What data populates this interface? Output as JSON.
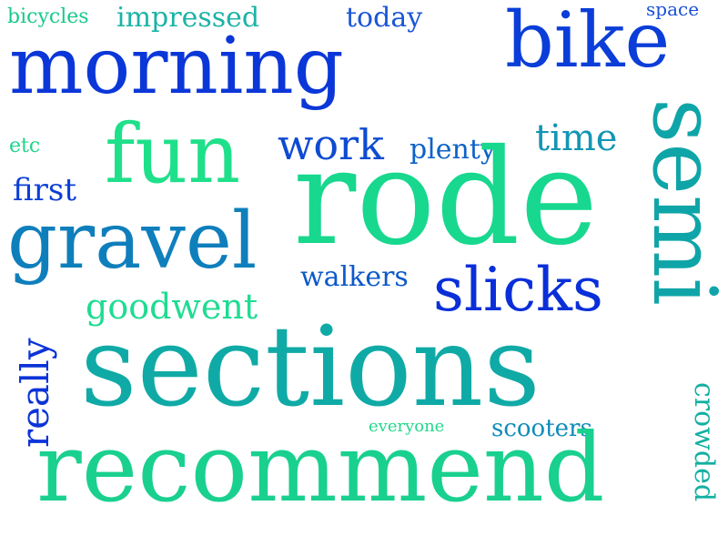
{
  "words": [
    {
      "text": "bicycles",
      "color": "#19c98a"
    },
    {
      "text": "impressed",
      "color": "#1bb3a6"
    },
    {
      "text": "today",
      "color": "#1a56d6"
    },
    {
      "text": "space",
      "color": "#1a4fd9"
    },
    {
      "text": "morning",
      "color": "#0b37d8"
    },
    {
      "text": "bike",
      "color": "#0b3ed8"
    },
    {
      "text": "fun",
      "color": "#1fe08a"
    },
    {
      "text": "work",
      "color": "#0e4bd2"
    },
    {
      "text": "plenty",
      "color": "#0f62c6"
    },
    {
      "text": "time",
      "color": "#1396b4"
    },
    {
      "text": "etc",
      "color": "#1ed68c"
    },
    {
      "text": "first",
      "color": "#0c3fd6"
    },
    {
      "text": "rode",
      "color": "#17d88e"
    },
    {
      "text": "gravel",
      "color": "#0f7fbc"
    },
    {
      "text": "semi",
      "color": "#0fa5a8"
    },
    {
      "text": "walkers",
      "color": "#0c59c8"
    },
    {
      "text": "slicks",
      "color": "#0a2fd9"
    },
    {
      "text": "goodwent",
      "color": "#1fdc92"
    },
    {
      "text": "really",
      "color": "#0b33d8"
    },
    {
      "text": "sections",
      "color": "#10aaa6"
    },
    {
      "text": "everyone",
      "color": "#25d88c"
    },
    {
      "text": "scooters",
      "color": "#0f8cb8"
    },
    {
      "text": "crowded",
      "color": "#12b0a2"
    },
    {
      "text": "recommend",
      "color": "#19d08f"
    }
  ]
}
